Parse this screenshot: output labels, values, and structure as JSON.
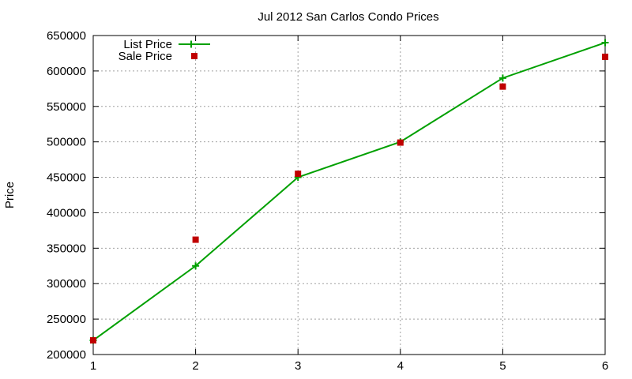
{
  "chart_data": {
    "type": "line",
    "title": "Jul 2012 San Carlos Condo Prices",
    "xlabel": "",
    "ylabel": "Price",
    "xlim": [
      1,
      6
    ],
    "ylim": [
      200000,
      650000
    ],
    "x_ticks": [
      "1",
      "2",
      "3",
      "4",
      "5",
      "6"
    ],
    "y_ticks": [
      "200000",
      "250000",
      "300000",
      "350000",
      "400000",
      "450000",
      "500000",
      "550000",
      "600000",
      "650000"
    ],
    "grid": true,
    "legend_position": "top-left",
    "x": [
      1,
      2,
      3,
      4,
      5,
      6
    ],
    "series": [
      {
        "name": "List Price",
        "style": "line with plus markers",
        "color": "#00a000",
        "values": [
          220000,
          325000,
          450000,
          500000,
          590000,
          640000
        ]
      },
      {
        "name": "Sale Price",
        "style": "square markers",
        "color": "#c00000",
        "values": [
          220000,
          362000,
          455000,
          499000,
          578000,
          620000
        ]
      }
    ]
  }
}
